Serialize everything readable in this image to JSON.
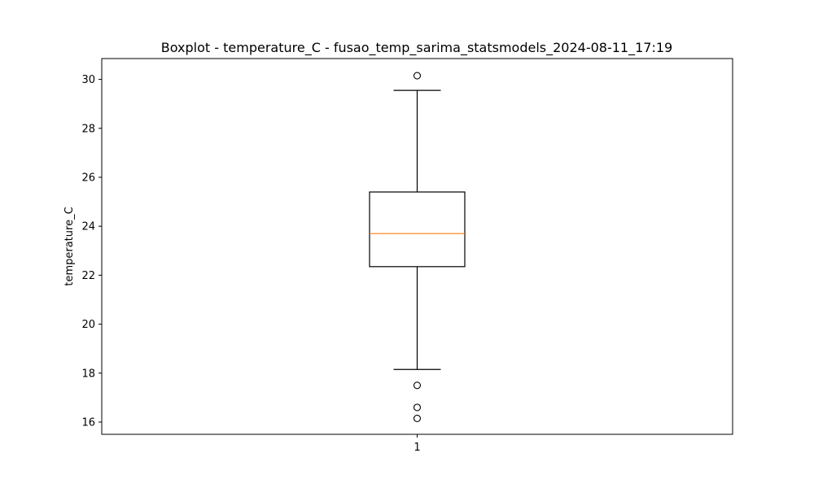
{
  "chart_data": {
    "type": "boxplot",
    "title": "Boxplot - temperature_C - fusao_temp_sarima_statsmodels_2024-08-11_17:19",
    "xlabel": "",
    "ylabel": "temperature_C",
    "ylim": [
      15.5,
      30.85
    ],
    "yticks": [
      16,
      18,
      20,
      22,
      24,
      26,
      28,
      30
    ],
    "categories": [
      "1"
    ],
    "boxes": [
      {
        "category": "1",
        "whisker_low": 18.15,
        "q1": 22.35,
        "median": 23.7,
        "q3": 25.4,
        "whisker_high": 29.55,
        "outliers": [
          30.15,
          17.5,
          16.6,
          16.15
        ]
      }
    ],
    "grid": false,
    "legend": "none",
    "colors": {
      "box": "#000000",
      "median": "#ff7f0e",
      "whisker": "#000000",
      "outlier": "#000000"
    }
  }
}
